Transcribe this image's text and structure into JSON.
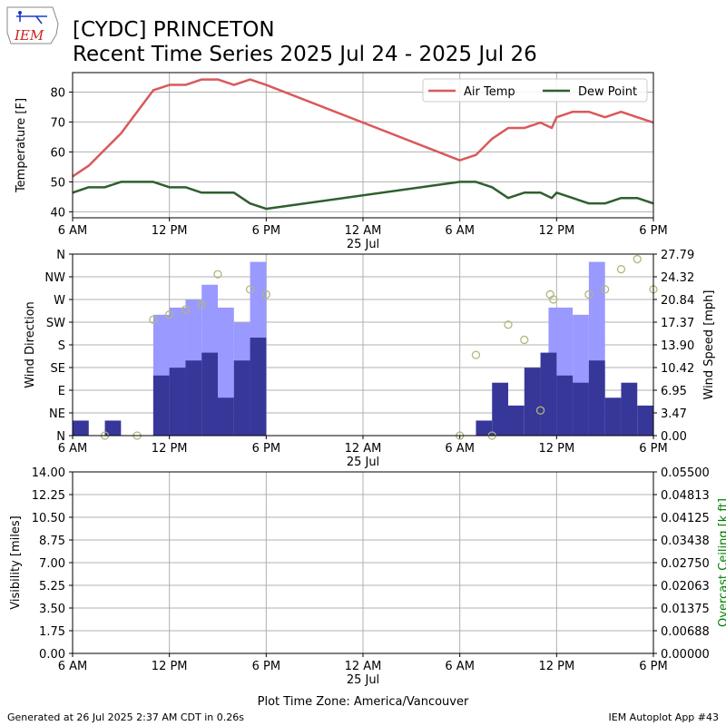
{
  "header": {
    "logo_text": "IEM",
    "title_line1": "[CYDC] PRINCETON",
    "title_line2": "Recent Time Series 2025 Jul 24 - 2025 Jul 26"
  },
  "footer": {
    "generated": "Generated at 26 Jul 2025 2:37 AM CDT in 0.26s",
    "app": "IEM Autoplot App #43",
    "timezone": "Plot Time Zone: America/Vancouver"
  },
  "x_axis": {
    "range_hours": [
      0,
      36
    ],
    "ticks": [
      {
        "h": 0,
        "label": "6 AM"
      },
      {
        "h": 6,
        "label": "12 PM"
      },
      {
        "h": 12,
        "label": "6 PM"
      },
      {
        "h": 18,
        "label": "12 AM"
      },
      {
        "h": 24,
        "label": "6 AM"
      },
      {
        "h": 30,
        "label": "12 PM"
      },
      {
        "h": 36,
        "label": "6 PM"
      }
    ],
    "date_label": "25 Jul",
    "date_label_at_h": 18
  },
  "chart_data": [
    {
      "type": "line",
      "ylabel": "Temperature [F]",
      "ylim": [
        38,
        86.5
      ],
      "yticks": [
        40,
        50,
        60,
        70,
        80
      ],
      "grid": true,
      "legend": "top-right",
      "series": [
        {
          "name": "Air Temp",
          "color": "#d9595b",
          "x": [
            0,
            1,
            2,
            3,
            4,
            5,
            6,
            7,
            8,
            9,
            10,
            11,
            12,
            24,
            25,
            26,
            27,
            28,
            29,
            29.7,
            30,
            31,
            32,
            33,
            34,
            35,
            36
          ],
          "y": [
            51.8,
            55.4,
            60.8,
            66.2,
            73.4,
            80.6,
            82.4,
            82.4,
            84.2,
            84.2,
            82.4,
            84.2,
            82.4,
            57.2,
            59,
            64.4,
            68,
            68,
            69.8,
            68,
            71.6,
            73.4,
            73.4,
            71.6,
            73.4,
            71.6,
            69.8
          ]
        },
        {
          "name": "Dew Point",
          "color": "#2f5f2f",
          "x": [
            0,
            1,
            2,
            3,
            4,
            5,
            6,
            7,
            8,
            9,
            10,
            11,
            12,
            24,
            25,
            26,
            27,
            28,
            29,
            29.7,
            30,
            31,
            32,
            33,
            34,
            35,
            36
          ],
          "y": [
            46.4,
            48.2,
            48.2,
            50,
            50,
            50,
            48.2,
            48.2,
            46.4,
            46.4,
            46.4,
            42.8,
            41,
            50,
            50,
            48.2,
            44.6,
            46.4,
            46.4,
            44.6,
            46.4,
            44.6,
            42.8,
            42.8,
            44.6,
            44.6,
            42.8
          ]
        }
      ]
    },
    {
      "type": "bar",
      "ylabel": "Wind Direction",
      "y2label": "Wind Speed [mph]",
      "direction_ticks": [
        "N",
        "NE",
        "E",
        "SE",
        "S",
        "SW",
        "W",
        "NW",
        "N"
      ],
      "direction_range": [
        0,
        360
      ],
      "speed_ticks": [
        "0.00",
        "3.47",
        "6.95",
        "10.42",
        "13.90",
        "17.37",
        "20.84",
        "24.32",
        "27.79"
      ],
      "speed_range": [
        0,
        27.79
      ],
      "grid": true,
      "wind_speed_bars": {
        "color": "#37379a",
        "x": [
          0.5,
          2.5,
          5.5,
          6.5,
          7.5,
          8.5,
          9.5,
          10.5,
          11.5,
          24.5,
          25.5,
          26.5,
          27.5,
          28.5,
          29.5,
          29.85,
          30.5,
          31.5,
          32.5,
          33.5,
          34.5,
          35.5
        ],
        "y": [
          2.3,
          2.3,
          9.2,
          10.4,
          11.5,
          12.7,
          5.8,
          11.5,
          15.0,
          0,
          2.3,
          8.1,
          4.6,
          10.4,
          12.7,
          0,
          9.2,
          8.1,
          11.5,
          5.8,
          8.1,
          4.6
        ]
      },
      "wind_gust_bars": {
        "color": "#9999ff",
        "x": [
          5.5,
          6.5,
          7.5,
          8.5,
          9.5,
          10.5,
          11.5,
          29.85,
          30.5,
          31.5,
          32.5
        ],
        "y": [
          18.5,
          19.6,
          20.8,
          23.1,
          19.6,
          17.3,
          26.6,
          19.6,
          19.6,
          18.5,
          26.6
        ]
      },
      "wind_direction_points": {
        "color": "#b0b87a",
        "x": [
          2,
          4,
          5,
          6,
          7,
          8,
          9,
          11,
          12,
          24,
          25,
          26,
          27,
          28,
          29,
          29.6,
          29.8,
          32,
          33,
          34,
          35,
          36
        ],
        "y": [
          0,
          0,
          230,
          240,
          250,
          260,
          320,
          290,
          280,
          0,
          160,
          0,
          220,
          190,
          50,
          280,
          270,
          280,
          290,
          330,
          350,
          290
        ]
      }
    },
    {
      "type": "line",
      "ylabel": "Visibility [miles]",
      "y2label": "Overcast Ceiling [k ft]",
      "y2label_color": "#008000",
      "ylim": [
        0,
        14
      ],
      "yticks": [
        "0.00",
        "1.75",
        "3.50",
        "5.25",
        "7.00",
        "8.75",
        "10.50",
        "12.25",
        "14.00"
      ],
      "y2lim": [
        0,
        0.055
      ],
      "y2ticks": [
        "0.00000",
        "0.00688",
        "0.01375",
        "0.02063",
        "0.02750",
        "0.03438",
        "0.04125",
        "0.04813",
        "0.05500"
      ],
      "grid": true,
      "series": []
    }
  ]
}
